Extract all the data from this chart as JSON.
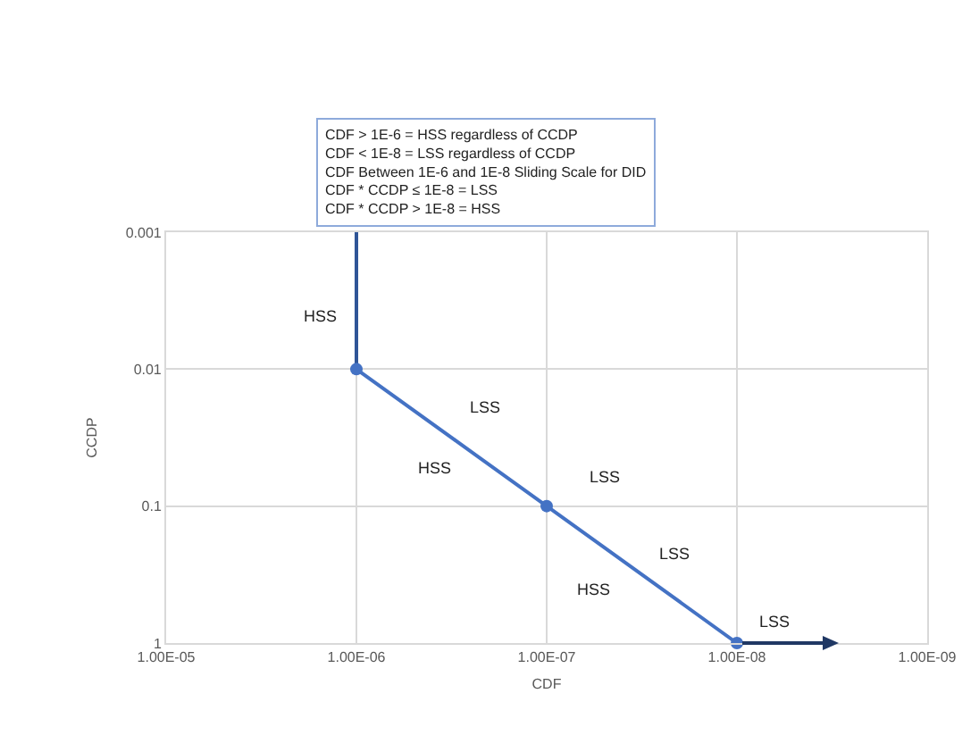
{
  "chart_data": {
    "type": "line",
    "xlabel": "CDF",
    "ylabel": "CCDP",
    "log": "xy",
    "grid": true,
    "xlim": [
      1e-05,
      1e-09
    ],
    "xticks": [
      {
        "value": 1e-05,
        "label": "1.00E-05"
      },
      {
        "value": 1e-06,
        "label": "1.00E-06"
      },
      {
        "value": 1e-07,
        "label": "1.00E-07"
      },
      {
        "value": 1e-08,
        "label": "1.00E-08"
      },
      {
        "value": 1e-09,
        "label": "1.00E-09"
      }
    ],
    "ylim": [
      1,
      0.001
    ],
    "yticks": [
      0.001,
      0.01,
      0.1,
      1
    ],
    "series": [
      {
        "x": [
          1e-06,
          1e-06
        ],
        "values": [
          0.001,
          0.01
        ],
        "color": "#2f5597",
        "marker": "none",
        "line_style": "solid"
      },
      {
        "x": [
          1e-06,
          1e-07,
          1e-08
        ],
        "values": [
          0.01,
          0.1,
          1
        ],
        "color": "#4472c4",
        "marker": "circle",
        "line_style": "solid"
      }
    ],
    "annotations": [
      "CDF > 1E-6 = HSS regardless of CCDP\nCDF < 1E-8 = LSS regardless of CCDP\nCDF Between 1E-6 and 1E-8 Sliding Scale for DID\nCDF * CCDP ≤ 1E-8 = LSS\nCDF * CCDP > 1E-8 = HSS",
      "HSS",
      "LSS",
      "HSS",
      "LSS",
      "LSS",
      "HSS",
      "LSS"
    ]
  }
}
